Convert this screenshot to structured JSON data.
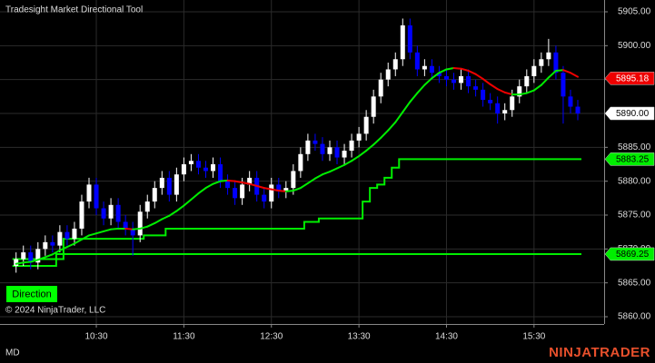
{
  "chart_data": {
    "type": "candlestick",
    "title": "Tradesight Market Directional Tool",
    "categories": [
      null,
      null,
      null,
      null,
      null,
      null,
      null,
      null,
      null,
      null,
      null,
      "10:30",
      null,
      null,
      null,
      null,
      null,
      null,
      null,
      null,
      null,
      null,
      null,
      "11:30",
      null,
      null,
      null,
      null,
      null,
      null,
      null,
      null,
      null,
      null,
      null,
      "12:30",
      null,
      null,
      null,
      null,
      null,
      null,
      null,
      null,
      null,
      null,
      null,
      "13:30",
      null,
      null,
      null,
      null,
      null,
      null,
      null,
      null,
      null,
      null,
      null,
      "14:30",
      null,
      null,
      null,
      null,
      null,
      null,
      null,
      null,
      null,
      null,
      null,
      "15:30",
      null,
      null,
      null,
      null,
      null,
      null
    ],
    "open": [
      5867.5,
      5868.5,
      5869.5,
      5868.0,
      5870.0,
      5871.0,
      5870.5,
      5872.5,
      5871.5,
      5873.0,
      5877.0,
      5879.5,
      5876.0,
      5874.5,
      5876.5,
      5874.0,
      5873.0,
      5872.0,
      5875.5,
      5877.0,
      5879.0,
      5880.5,
      5878.0,
      5881.0,
      5882.5,
      5883.0,
      5882.0,
      5881.5,
      5882.5,
      5880.0,
      5879.0,
      5877.5,
      5879.5,
      5880.5,
      5878.0,
      5877.0,
      5879.5,
      5878.5,
      5879.0,
      5881.5,
      5884.0,
      5886.0,
      5885.5,
      5884.0,
      5885.0,
      5883.5,
      5884.5,
      5886.0,
      5887.0,
      5889.5,
      5892.5,
      5895.0,
      5896.5,
      5898.0,
      5903.0,
      5899.0,
      5896.5,
      5897.0,
      5896.0,
      5895.5,
      5895.0,
      5894.5,
      5895.5,
      5894.0,
      5893.5,
      5892.0,
      5891.5,
      5890.0,
      5890.5,
      5892.5,
      5894.0,
      5895.5,
      5897.0,
      5898.0,
      5899.0,
      5896.0,
      5892.5,
      5891.0
    ],
    "high": [
      5869.5,
      5870.5,
      5870.5,
      5871.0,
      5872.0,
      5872.0,
      5873.5,
      5873.5,
      5874.0,
      5878.0,
      5880.5,
      5880.5,
      5877.0,
      5877.5,
      5877.5,
      5875.0,
      5874.0,
      5876.5,
      5878.0,
      5880.0,
      5881.5,
      5881.5,
      5882.0,
      5883.5,
      5884.0,
      5884.0,
      5883.0,
      5883.5,
      5883.5,
      5881.0,
      5880.0,
      5880.5,
      5881.5,
      5881.5,
      5879.0,
      5880.5,
      5880.5,
      5880.0,
      5882.5,
      5885.0,
      5887.0,
      5887.0,
      5886.5,
      5886.0,
      5886.0,
      5885.5,
      5887.0,
      5888.0,
      5890.5,
      5893.5,
      5896.0,
      5897.5,
      5899.0,
      5904.0,
      5904.0,
      5900.0,
      5898.0,
      5898.0,
      5897.0,
      5896.5,
      5896.0,
      5896.5,
      5896.5,
      5895.0,
      5894.5,
      5893.0,
      5892.5,
      5891.5,
      5893.5,
      5895.0,
      5896.5,
      5898.0,
      5899.0,
      5901.0,
      5900.0,
      5897.0,
      5893.5,
      5892.0
    ],
    "low": [
      5866.5,
      5867.5,
      5867.0,
      5867.0,
      5869.0,
      5869.5,
      5869.5,
      5870.5,
      5870.5,
      5872.0,
      5876.0,
      5875.0,
      5873.5,
      5873.5,
      5873.0,
      5872.0,
      5869.0,
      5871.0,
      5874.5,
      5876.0,
      5878.0,
      5877.0,
      5877.0,
      5880.0,
      5881.5,
      5881.0,
      5880.5,
      5880.5,
      5879.0,
      5878.0,
      5876.5,
      5876.5,
      5878.5,
      5877.0,
      5876.0,
      5876.0,
      5877.5,
      5877.5,
      5878.0,
      5880.5,
      5883.0,
      5884.5,
      5883.0,
      5883.0,
      5882.5,
      5882.5,
      5883.5,
      5885.0,
      5886.0,
      5888.5,
      5891.5,
      5894.0,
      5895.5,
      5897.0,
      5898.0,
      5895.5,
      5895.5,
      5895.0,
      5894.5,
      5894.0,
      5893.5,
      5893.5,
      5893.0,
      5892.5,
      5891.0,
      5890.5,
      5888.5,
      5889.0,
      5889.5,
      5891.5,
      5893.0,
      5894.5,
      5896.0,
      5897.0,
      5895.0,
      5888.5,
      5890.0,
      5889.0
    ],
    "close": [
      5868.5,
      5869.5,
      5868.0,
      5870.0,
      5871.0,
      5870.5,
      5872.5,
      5871.5,
      5873.0,
      5877.0,
      5879.5,
      5876.0,
      5874.5,
      5876.5,
      5874.0,
      5873.0,
      5872.0,
      5875.5,
      5877.0,
      5879.0,
      5880.5,
      5878.0,
      5881.0,
      5882.5,
      5883.0,
      5882.0,
      5881.5,
      5882.5,
      5880.0,
      5879.0,
      5877.5,
      5879.5,
      5880.5,
      5878.0,
      5877.0,
      5879.5,
      5878.5,
      5879.0,
      5881.5,
      5884.0,
      5886.0,
      5885.5,
      5884.0,
      5885.0,
      5883.5,
      5884.5,
      5886.0,
      5887.0,
      5889.5,
      5892.5,
      5895.0,
      5896.5,
      5898.0,
      5903.0,
      5899.0,
      5896.5,
      5897.0,
      5896.0,
      5895.5,
      5895.0,
      5894.5,
      5895.5,
      5894.0,
      5893.5,
      5892.0,
      5891.5,
      5890.0,
      5890.5,
      5892.5,
      5894.0,
      5895.5,
      5897.0,
      5898.0,
      5899.0,
      5896.0,
      5892.5,
      5891.0,
      5890.0
    ],
    "up_color": "#ffffff",
    "down_color": "#0000ff",
    "ma": {
      "values": [
        5867.8,
        5868.0,
        5868.1,
        5868.4,
        5868.8,
        5869.2,
        5869.8,
        5870.3,
        5870.8,
        5871.4,
        5872.0,
        5872.3,
        5872.6,
        5872.9,
        5873.0,
        5873.0,
        5872.9,
        5873.0,
        5873.3,
        5873.8,
        5874.4,
        5874.9,
        5875.6,
        5876.4,
        5877.3,
        5878.2,
        5879.0,
        5879.6,
        5880.0,
        5880.1,
        5880.0,
        5879.8,
        5879.6,
        5879.3,
        5879.0,
        5878.8,
        5878.6,
        5878.5,
        5878.6,
        5879.0,
        5879.7,
        5880.4,
        5881.0,
        5881.4,
        5881.9,
        5882.4,
        5883.0,
        5883.7,
        5884.5,
        5885.4,
        5886.4,
        5887.5,
        5888.7,
        5890.2,
        5891.7,
        5893.0,
        5894.2,
        5895.2,
        5896.0,
        5896.5,
        5896.7,
        5896.6,
        5896.3,
        5895.8,
        5895.1,
        5894.3,
        5893.6,
        5893.1,
        5892.8,
        5892.8,
        5893.0,
        5893.4,
        5894.2,
        5895.3,
        5896.3,
        5896.4,
        5896.0,
        5895.4
      ],
      "up_color": "#00ee00",
      "down_color": "#ee0000"
    },
    "stops": [
      {
        "color": "#00ee00",
        "values": [
          5868.5,
          5868.5,
          5868.5,
          5868.5,
          5868.5,
          5868.5,
          5868.5,
          5871.5,
          5871.5,
          5871.5,
          5871.5,
          5871.5,
          5871.5,
          5871.5,
          5871.5,
          5871.5,
          5871.5,
          5871.5,
          5872.0,
          5872.0,
          5872.0,
          5873.0,
          5873.0,
          5873.0,
          5873.0,
          5873.0,
          5873.0,
          5873.0,
          5873.0,
          5873.0,
          5873.0,
          5873.0,
          5873.0,
          5873.0,
          5873.0,
          5873.0,
          5873.0,
          5873.0,
          5873.0,
          5873.0,
          5874.0,
          5874.0,
          5874.5,
          5874.5,
          5874.5,
          5874.5,
          5874.5,
          5874.5,
          5877.0,
          5879.0,
          5879.5,
          5880.5,
          5882.0,
          5883.25,
          5883.25,
          5883.25,
          5883.25,
          5883.25,
          5883.25,
          5883.25,
          5883.25,
          5883.25,
          5883.25,
          5883.25,
          5883.25,
          5883.25,
          5883.25,
          5883.25,
          5883.25,
          5883.25,
          5883.25,
          5883.25,
          5883.25,
          5883.25,
          5883.25,
          5883.25,
          5883.25,
          5883.25
        ]
      },
      {
        "color": "#00ee00",
        "values": [
          5867.5,
          5867.5,
          5867.5,
          5867.5,
          5867.5,
          5867.5,
          5869.25,
          5869.25,
          5869.25,
          5869.25,
          5869.25,
          5869.25,
          5869.25,
          5869.25,
          5869.25,
          5869.25,
          5869.25,
          5869.25,
          5869.25,
          5869.25,
          5869.25,
          5869.25,
          5869.25,
          5869.25,
          5869.25,
          5869.25,
          5869.25,
          5869.25,
          5869.25,
          5869.25,
          5869.25,
          5869.25,
          5869.25,
          5869.25,
          5869.25,
          5869.25,
          5869.25,
          5869.25,
          5869.25,
          5869.25,
          5869.25,
          5869.25,
          5869.25,
          5869.25,
          5869.25,
          5869.25,
          5869.25,
          5869.25,
          5869.25,
          5869.25,
          5869.25,
          5869.25,
          5869.25,
          5869.25,
          5869.25,
          5869.25,
          5869.25,
          5869.25,
          5869.25,
          5869.25,
          5869.25,
          5869.25,
          5869.25,
          5869.25,
          5869.25,
          5869.25,
          5869.25,
          5869.25,
          5869.25,
          5869.25,
          5869.25,
          5869.25,
          5869.25,
          5869.25,
          5869.25,
          5869.25,
          5869.25,
          5869.25
        ]
      }
    ],
    "ylim": [
      5858.93,
      5906.74
    ],
    "yticks": [
      {
        "value": 5905,
        "label": "5905.00"
      },
      {
        "value": 5900,
        "label": "5900.00"
      },
      {
        "value": 5895,
        "label": "5895.00"
      },
      {
        "value": 5890,
        "label": "5890.00"
      },
      {
        "value": 5885,
        "label": "5885.00"
      },
      {
        "value": 5880,
        "label": "5880.00"
      },
      {
        "value": 5875,
        "label": "5875.00"
      },
      {
        "value": 5870,
        "label": "5870.00"
      },
      {
        "value": 5865,
        "label": "5865.00"
      },
      {
        "value": 5860,
        "label": "5860.00"
      }
    ],
    "grid": true,
    "price_markers": [
      {
        "value": 5895.18,
        "color": "#ee0000",
        "text_color": "#ffffff"
      },
      {
        "value": 5890,
        "label": "5890.00",
        "color": "#ffffff",
        "text_color": "#000000"
      },
      {
        "value": 5883.25,
        "color": "#00ee00",
        "text_color": "#000000"
      },
      {
        "value": 5869.25,
        "color": "#00ee00",
        "text_color": "#000000"
      }
    ]
  },
  "indicator_button": "Direction",
  "copyright": "© 2024 NinjaTrader, LLC",
  "instrument_label": "MD",
  "logo": "NINJATRADER"
}
